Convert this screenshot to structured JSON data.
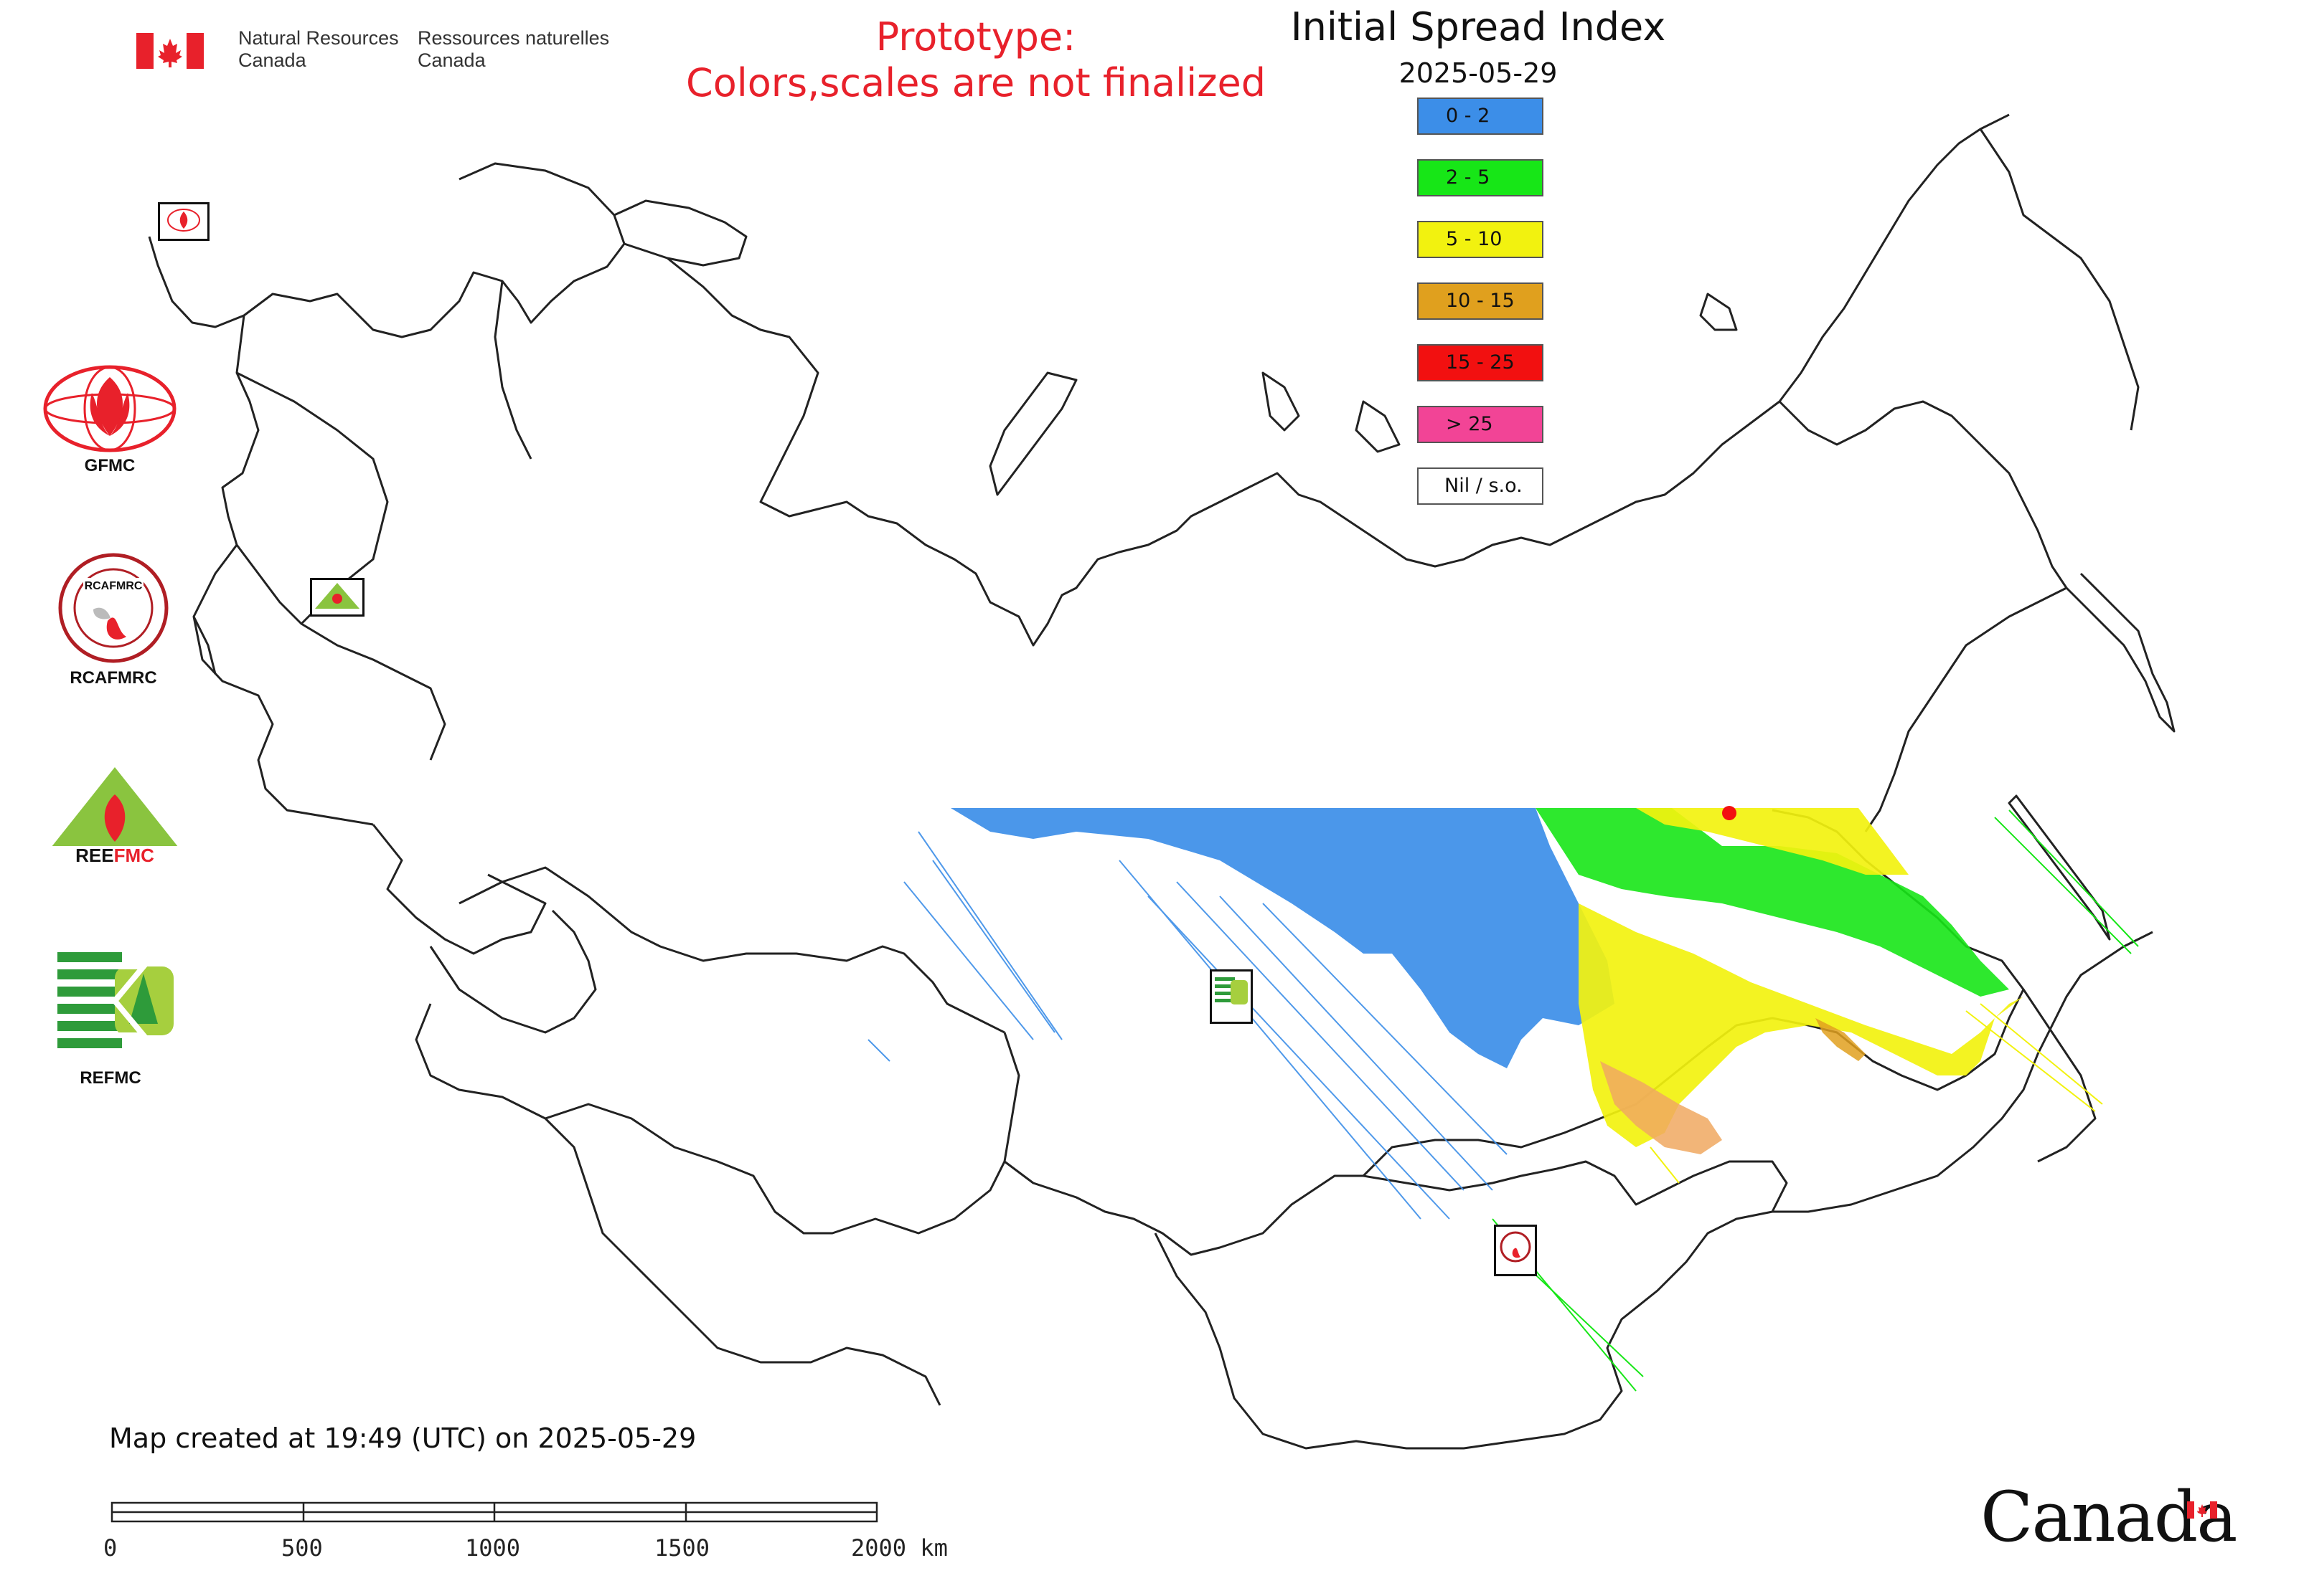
{
  "header": {
    "gov_en_line1": "Natural Resources",
    "gov_en_line2": "Canada",
    "gov_fr_line1": "Ressources naturelles",
    "gov_fr_line2": "Canada",
    "prototype_line1": "Prototype:",
    "prototype_line2": "Colors,scales are not finalized"
  },
  "map": {
    "title": "Initial Spread Index",
    "date": "2025-05-29"
  },
  "legend": [
    {
      "label": "0 - 2",
      "color": "#3c8ee8"
    },
    {
      "label": "2 - 5",
      "color": "#17e617"
    },
    {
      "label": "5 - 10",
      "color": "#f2f20f"
    },
    {
      "label": "10 - 15",
      "color": "#e0a01e"
    },
    {
      "label": "15 - 25",
      "color": "#f21010"
    },
    {
      "label": "> 25",
      "color": "#f24496"
    },
    {
      "label": "Nil / s.o.",
      "color": "#ffffff"
    }
  ],
  "organizations": [
    {
      "label": "GFMC",
      "icon": "gfmc-logo-icon"
    },
    {
      "label": "RCAFMRC",
      "icon": "rcafmrc-logo-icon"
    },
    {
      "label": "REEFMC",
      "icon": "reefmc-logo-icon"
    },
    {
      "label": "REFMC",
      "icon": "refmc-logo-icon"
    }
  ],
  "footer": {
    "created": "Map created at 19:49 (UTC) on 2025-05-29",
    "scale_labels": [
      "0",
      "500",
      "1000",
      "1500",
      "2000 km"
    ],
    "wordmark": "Canada"
  }
}
